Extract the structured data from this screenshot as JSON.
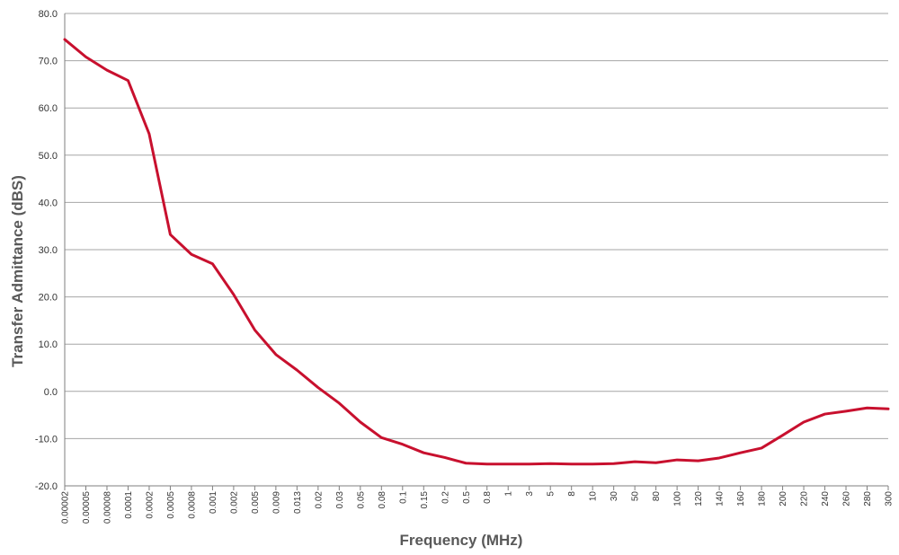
{
  "chart_data": {
    "type": "line",
    "title": "",
    "xlabel": "Frequency (MHz)",
    "ylabel": "Transfer Admittance (dBS)",
    "ylim": [
      -20,
      80
    ],
    "y_ticks": [
      "-20.0",
      "-10.0",
      "0.0",
      "10.0",
      "20.0",
      "30.0",
      "40.0",
      "50.0",
      "60.0",
      "70.0",
      "80.0"
    ],
    "y_tick_values": [
      -20,
      -10,
      0,
      10,
      20,
      30,
      40,
      50,
      60,
      70,
      80
    ],
    "grid": true,
    "legend": "none",
    "categories": [
      "0.00002",
      "0.00005",
      "0.00008",
      "0.0001",
      "0.0002",
      "0.0005",
      "0.0008",
      "0.001",
      "0.002",
      "0.005",
      "0.009",
      "0.013",
      "0.02",
      "0.03",
      "0.05",
      "0.08",
      "0.1",
      "0.15",
      "0.2",
      "0.5",
      "0.8",
      "1",
      "3",
      "5",
      "8",
      "10",
      "30",
      "50",
      "80",
      "100",
      "120",
      "140",
      "160",
      "180",
      "200",
      "220",
      "240",
      "260",
      "280",
      "300"
    ],
    "series": [
      {
        "color": "#c8102e",
        "values": [
          74.5,
          70.8,
          68.0,
          65.8,
          54.5,
          33.2,
          29.0,
          27.0,
          20.5,
          13.0,
          7.8,
          4.5,
          0.8,
          -2.5,
          -6.5,
          -9.8,
          -11.2,
          -13.0,
          -14.0,
          -15.2,
          -15.4,
          -15.4,
          -15.4,
          -15.3,
          -15.4,
          -15.4,
          -15.3,
          -14.9,
          -15.1,
          -14.5,
          -14.7,
          -14.1,
          -13.0,
          -12.0,
          -9.3,
          -6.5,
          -4.8,
          -4.2,
          -3.5,
          -3.7
        ]
      }
    ]
  }
}
